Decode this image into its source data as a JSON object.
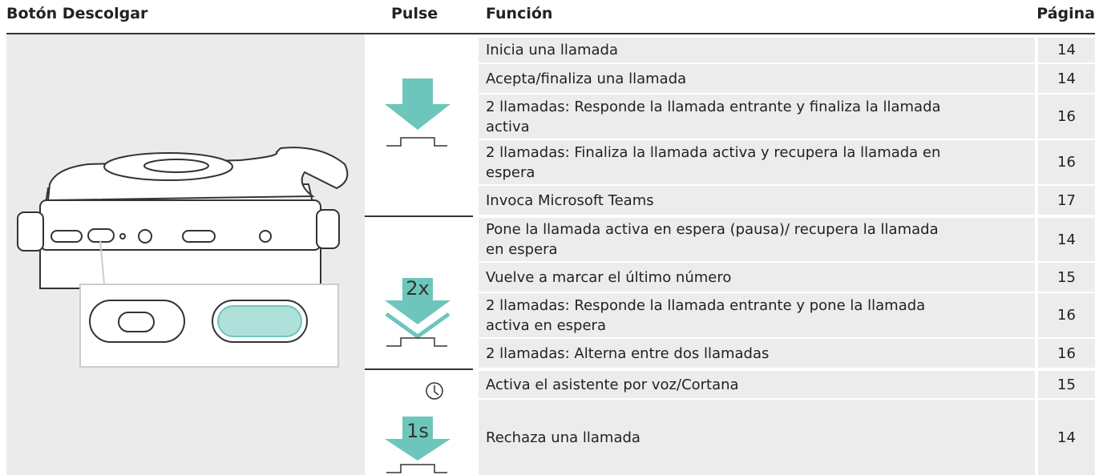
{
  "header": {
    "title": "Botón Descolgar",
    "pulse": "Pulse",
    "function": "Función",
    "page": "Página"
  },
  "groups": [
    {
      "rows": [
        {
          "function": "Inicia una llamada",
          "page": 14
        },
        {
          "function": "Acepta/finaliza una llamada",
          "page": 14
        },
        {
          "function": "2 llamadas: Responde la llamada entrante y finaliza la llamada activa",
          "page": 16
        },
        {
          "function": "2 llamadas: Finaliza la llamada activa y recupera la llamada en espera",
          "page": 16
        },
        {
          "function": "Invoca Microsoft Teams",
          "page": 17
        }
      ]
    },
    {
      "icon_label": "2x",
      "rows": [
        {
          "function": "Pone la llamada activa en espera (pausa)/ recupera la llamada en espera",
          "page": 14
        },
        {
          "function": "Vuelve a marcar el último número",
          "page": 15
        },
        {
          "function": "2 llamadas: Responde la llamada entrante y pone la llamada activa en espera",
          "page": 16
        },
        {
          "function": "2 llamadas: Alterna entre dos llamadas",
          "page": 16
        }
      ]
    },
    {
      "icon_label": "1s",
      "rows": [
        {
          "function": "Activa el asistente por voz/Cortana",
          "page": 15
        },
        {
          "function": "Rechaza una llamada",
          "page": 14
        }
      ]
    }
  ]
}
